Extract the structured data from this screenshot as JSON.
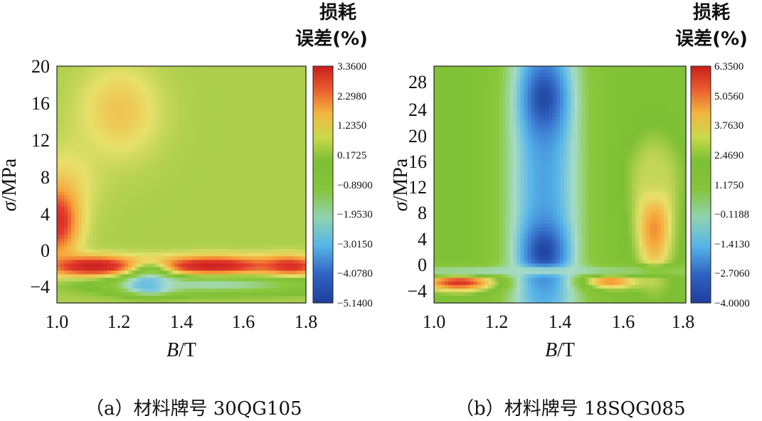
{
  "colormap": [
    "#1f3f9e",
    "#3a78d0",
    "#56b4e8",
    "#a6dcc8",
    "#8cc83c",
    "#7dbf35",
    "#e7e16a",
    "#f7a63a",
    "#e23a2a",
    "#c91e1e"
  ],
  "chart_data": [
    {
      "type": "heatmap",
      "caption": "（a）材料牌号 30QG105",
      "xlabel_main": "B",
      "xlabel_unit": "/T",
      "ylabel_main": "σ",
      "ylabel_unit": "/MPa",
      "xlim": [
        1.0,
        1.8
      ],
      "ylim": [
        -6,
        20
      ],
      "x_ticks": [
        "1.0",
        "1.2",
        "1.4",
        "1.6",
        "1.8"
      ],
      "x_tick_values": [
        1.0,
        1.2,
        1.4,
        1.6,
        1.8
      ],
      "y_ticks": [
        "20",
        "16",
        "12",
        "8",
        "4",
        "0",
        "−4"
      ],
      "y_tick_values": [
        20,
        16,
        12,
        8,
        4,
        0,
        -4
      ],
      "colorbar_title_line1": "损耗",
      "colorbar_title_line2": "误差(%)",
      "colorbar_ticks": [
        "3.3600",
        "2.2980",
        "1.2350",
        "0.1725",
        "−0.8900",
        "−1.9530",
        "−3.0150",
        "−4.0780",
        "−5.1400"
      ],
      "colorbar_range": [
        -5.14,
        3.36
      ],
      "background_value": 0.0,
      "features": [
        {
          "x": 1.2,
          "y": 15,
          "sx": 0.09,
          "sy": 3.5,
          "value": 1.0
        },
        {
          "x": 1.05,
          "y": 8,
          "sx": 0.07,
          "sy": 3.0,
          "value": 0.5
        },
        {
          "x": 1.0,
          "y": 3,
          "sx": 0.05,
          "sy": 2.8,
          "value": 2.8
        },
        {
          "x": 1.12,
          "y": -2,
          "sx": 0.1,
          "sy": 0.8,
          "value": 3.3
        },
        {
          "x": 1.5,
          "y": -2,
          "sx": 0.14,
          "sy": 0.8,
          "value": 3.3
        },
        {
          "x": 1.75,
          "y": -2,
          "sx": 0.07,
          "sy": 0.8,
          "value": 2.8
        },
        {
          "x": 1.3,
          "y": -2.5,
          "sx": 0.04,
          "sy": 0.7,
          "value": -0.8
        },
        {
          "x": 1.3,
          "y": -4,
          "sx": 0.06,
          "sy": 0.7,
          "value": -5.0
        },
        {
          "x": 1.5,
          "y": -4,
          "sx": 0.25,
          "sy": 0.7,
          "value": -2.2
        }
      ]
    },
    {
      "type": "heatmap",
      "caption": "（b）材料牌号 18SQG085",
      "xlabel_main": "B",
      "xlabel_unit": "/T",
      "ylabel_main": "σ",
      "ylabel_unit": "/MPa",
      "xlim": [
        1.0,
        1.8
      ],
      "ylim": [
        -6,
        31
      ],
      "x_ticks": [
        "1.0",
        "1.2",
        "1.4",
        "1.6",
        "1.8"
      ],
      "x_tick_values": [
        1.0,
        1.2,
        1.4,
        1.6,
        1.8
      ],
      "y_ticks": [
        "28",
        "24",
        "20",
        "16",
        "12",
        "8",
        "4",
        "0",
        "−4"
      ],
      "y_tick_values": [
        28,
        24,
        20,
        16,
        12,
        8,
        4,
        0,
        -4
      ],
      "colorbar_title_line1": "损耗",
      "colorbar_title_line2": "误差(%)",
      "colorbar_ticks": [
        "6.3500",
        "5.0560",
        "3.7630",
        "2.4690",
        "1.1750",
        "−0.1188",
        "−1.4130",
        "−2.7060",
        "−4.0000"
      ],
      "colorbar_range": [
        -4.0,
        6.35
      ],
      "background_value": 1.5,
      "features": [
        {
          "x": 1.35,
          "y": 12,
          "sx": 0.09,
          "sy": 40,
          "value": -2.0
        },
        {
          "x": 1.35,
          "y": 26,
          "sx": 0.045,
          "sy": 4.0,
          "value": -3.8
        },
        {
          "x": 1.35,
          "y": 2,
          "sx": 0.045,
          "sy": 3.0,
          "value": -3.9
        },
        {
          "x": 1.08,
          "y": -2.7,
          "sx": 0.08,
          "sy": 1.0,
          "value": 5.5
        },
        {
          "x": 1.56,
          "y": -2.5,
          "sx": 0.06,
          "sy": 0.9,
          "value": 4.5
        },
        {
          "x": 1.7,
          "y": 7,
          "sx": 0.04,
          "sy": 6,
          "value": 4.6
        },
        {
          "x": 1.7,
          "y": 14,
          "sx": 0.06,
          "sy": 4,
          "value": 2.5
        },
        {
          "x": 1.25,
          "y": -1.0,
          "sx": 0.55,
          "sy": 0.6,
          "value": -0.5
        }
      ]
    }
  ]
}
